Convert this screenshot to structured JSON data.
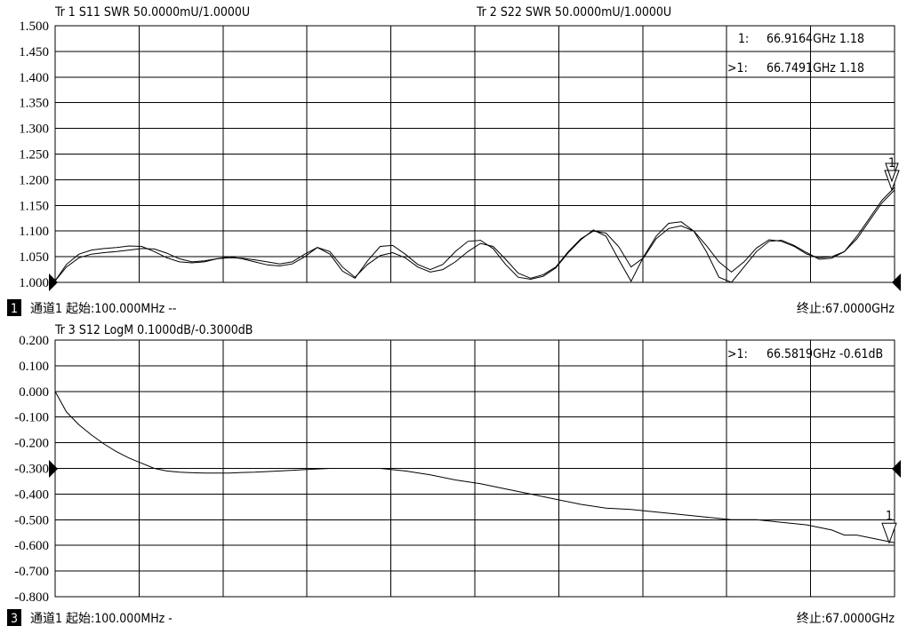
{
  "chart_data": [
    {
      "type": "line",
      "title_left": "Tr 1  S11 SWR 50.0000mU/1.0000U",
      "title_right": "Tr 2  S22 SWR 50.0000mU/1.0000U",
      "ylim": [
        1.0,
        1.5
      ],
      "y_ticks": [
        "1.500",
        "1.450",
        "1.400",
        "1.350",
        "1.300",
        "1.250",
        "1.200",
        "1.150",
        "1.100",
        "1.050",
        "1.000"
      ],
      "xlim": [
        0.1,
        67.0
      ],
      "markers": [
        {
          "label": "1:",
          "text": "66.9164GHz 1.18"
        },
        {
          "label": ">1:",
          "text": "66.7491GHz 1.18"
        }
      ],
      "marker_tag": "1",
      "footer": {
        "channel_badge": "1",
        "left": "通道1  起始:100.000MHz --",
        "right": "终止:67.0000GHz"
      },
      "series": [
        {
          "x": [
            0.1,
            1,
            2,
            3,
            4,
            5,
            6,
            7,
            8,
            9,
            10,
            11,
            12,
            13,
            14,
            15,
            16,
            17,
            18,
            19,
            20,
            21,
            22,
            23,
            24,
            25,
            26,
            27,
            28,
            29,
            30,
            31,
            32,
            33,
            34,
            35,
            36,
            37,
            38,
            39,
            40,
            41,
            42,
            43,
            44,
            45,
            46,
            47,
            48,
            49,
            50,
            51,
            52,
            53,
            54,
            55,
            56,
            57,
            58,
            59,
            60,
            61,
            62,
            63,
            64,
            65,
            66,
            67
          ],
          "values": [
            1.003,
            1.03,
            1.048,
            1.055,
            1.058,
            1.06,
            1.063,
            1.066,
            1.065,
            1.057,
            1.046,
            1.04,
            1.042,
            1.046,
            1.048,
            1.047,
            1.044,
            1.04,
            1.036,
            1.04,
            1.055,
            1.068,
            1.06,
            1.03,
            1.01,
            1.035,
            1.052,
            1.058,
            1.048,
            1.03,
            1.02,
            1.025,
            1.04,
            1.06,
            1.076,
            1.07,
            1.045,
            1.018,
            1.008,
            1.015,
            1.03,
            1.06,
            1.085,
            1.1,
            1.096,
            1.07,
            1.03,
            1.048,
            1.085,
            1.105,
            1.11,
            1.1,
            1.072,
            1.04,
            1.02,
            1.04,
            1.067,
            1.083,
            1.08,
            1.07,
            1.055,
            1.048,
            1.05,
            1.06,
            1.085,
            1.12,
            1.155,
            1.18
          ]
        },
        {
          "x": [
            0.1,
            1,
            2,
            3,
            4,
            5,
            6,
            7,
            8,
            9,
            10,
            11,
            12,
            13,
            14,
            15,
            16,
            17,
            18,
            19,
            20,
            21,
            22,
            23,
            24,
            25,
            26,
            27,
            28,
            29,
            30,
            31,
            32,
            33,
            34,
            35,
            36,
            37,
            38,
            39,
            40,
            41,
            42,
            43,
            44,
            45,
            46,
            47,
            48,
            49,
            50,
            51,
            52,
            53,
            54,
            55,
            56,
            57,
            58,
            59,
            60,
            61,
            62,
            63,
            64,
            65,
            66,
            67
          ],
          "values": [
            1.003,
            1.035,
            1.055,
            1.063,
            1.066,
            1.068,
            1.071,
            1.07,
            1.06,
            1.048,
            1.04,
            1.038,
            1.04,
            1.046,
            1.05,
            1.046,
            1.04,
            1.034,
            1.032,
            1.036,
            1.05,
            1.068,
            1.055,
            1.022,
            1.008,
            1.042,
            1.07,
            1.072,
            1.055,
            1.035,
            1.025,
            1.035,
            1.06,
            1.08,
            1.082,
            1.066,
            1.035,
            1.01,
            1.006,
            1.012,
            1.028,
            1.058,
            1.083,
            1.102,
            1.09,
            1.045,
            1.002,
            1.05,
            1.09,
            1.115,
            1.118,
            1.1,
            1.06,
            1.01,
            1.0,
            1.03,
            1.06,
            1.08,
            1.082,
            1.072,
            1.058,
            1.045,
            1.047,
            1.06,
            1.09,
            1.125,
            1.16,
            1.185
          ]
        }
      ]
    },
    {
      "type": "line",
      "title_left": "Tr 3  S12 LogM 0.1000dB/-0.3000dB",
      "ylim": [
        -0.8,
        0.2
      ],
      "y_ticks": [
        "0.200",
        "0.100",
        "0.000",
        "-0.100",
        "-0.200",
        "-0.300",
        "-0.400",
        "-0.500",
        "-0.600",
        "-0.700",
        "-0.800"
      ],
      "xlim": [
        0.1,
        67.0
      ],
      "markers": [
        {
          "label": ">1:",
          "text": "66.5819GHz -0.61dB"
        }
      ],
      "marker_tag": "1",
      "footer": {
        "channel_badge": "3",
        "left": "通道1  起始:100.000MHz -",
        "right": "终止:67.0000GHz"
      },
      "series": [
        {
          "x": [
            0.1,
            1,
            2,
            3,
            4,
            5,
            6,
            7,
            8,
            9,
            10,
            11,
            12,
            13,
            14,
            15,
            16,
            18,
            20,
            22,
            24,
            26,
            28,
            30,
            32,
            34,
            36,
            38,
            40,
            42,
            44,
            46,
            48,
            50,
            52,
            54,
            56,
            58,
            60,
            62,
            63,
            64,
            65,
            66,
            67
          ],
          "values": [
            0.0,
            -0.08,
            -0.13,
            -0.17,
            -0.205,
            -0.235,
            -0.26,
            -0.28,
            -0.3,
            -0.31,
            -0.315,
            -0.317,
            -0.318,
            -0.318,
            -0.318,
            -0.316,
            -0.315,
            -0.31,
            -0.305,
            -0.3,
            -0.3,
            -0.3,
            -0.31,
            -0.325,
            -0.345,
            -0.36,
            -0.38,
            -0.4,
            -0.42,
            -0.44,
            -0.455,
            -0.46,
            -0.47,
            -0.48,
            -0.49,
            -0.5,
            -0.5,
            -0.51,
            -0.52,
            -0.54,
            -0.56,
            -0.56,
            -0.57,
            -0.58,
            -0.59
          ]
        }
      ]
    }
  ]
}
